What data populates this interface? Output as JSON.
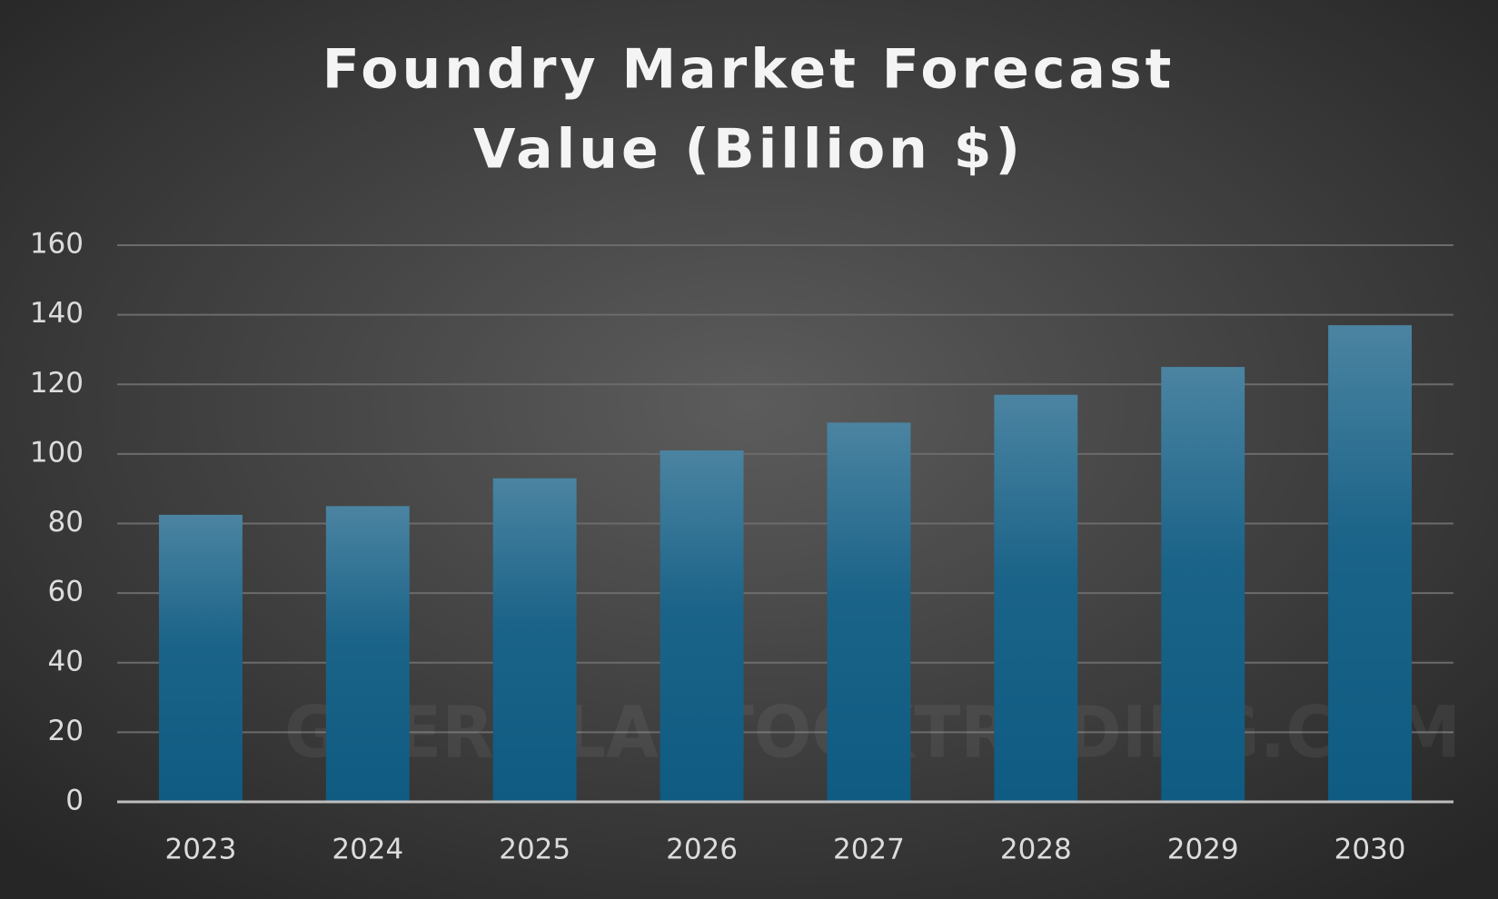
{
  "chart_data": {
    "type": "bar",
    "title": [
      "Foundry Market Forecast",
      "Value (Billion $)"
    ],
    "watermark": "GUERILLASTOCKTRADING.COM",
    "categories": [
      "2023",
      "2024",
      "2025",
      "2026",
      "2027",
      "2028",
      "2029",
      "2030"
    ],
    "values": [
      82.5,
      85,
      93,
      101,
      109,
      117,
      125,
      137
    ],
    "color": "#0f5b82",
    "ylim": [
      0,
      160
    ],
    "yticks": [
      0,
      20,
      40,
      60,
      80,
      100,
      120,
      140,
      160
    ],
    "grid": true
  }
}
